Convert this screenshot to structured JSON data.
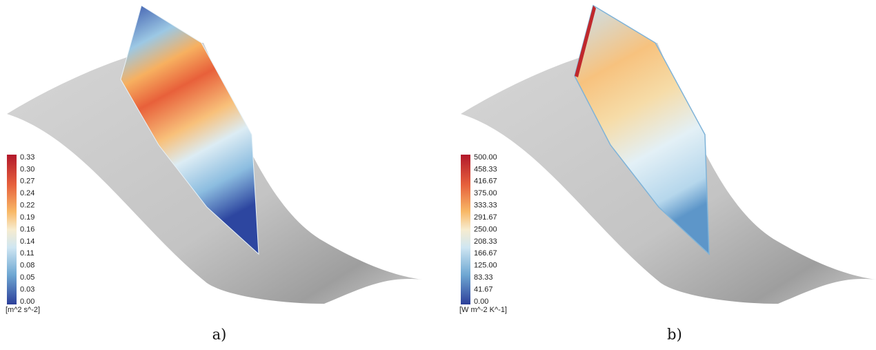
{
  "panels": [
    {
      "colorbar": {
        "ticks": [
          "0.33",
          "0.30",
          "0.27",
          "0.24",
          "0.22",
          "0.19",
          "0.16",
          "0.14",
          "0.11",
          "0.08",
          "0.05",
          "0.03",
          "0.00"
        ],
        "units": "[m^2 s^-2]"
      },
      "caption": "a)"
    },
    {
      "colorbar": {
        "ticks": [
          "500.00",
          "458.33",
          "416.67",
          "375.00",
          "333.33",
          "291.67",
          "250.00",
          "208.33",
          "166.67",
          "125.00",
          "83.33",
          "41.67",
          "0.00"
        ],
        "units": "[W m^-2 K^-1]"
      },
      "caption": "b)"
    }
  ]
}
